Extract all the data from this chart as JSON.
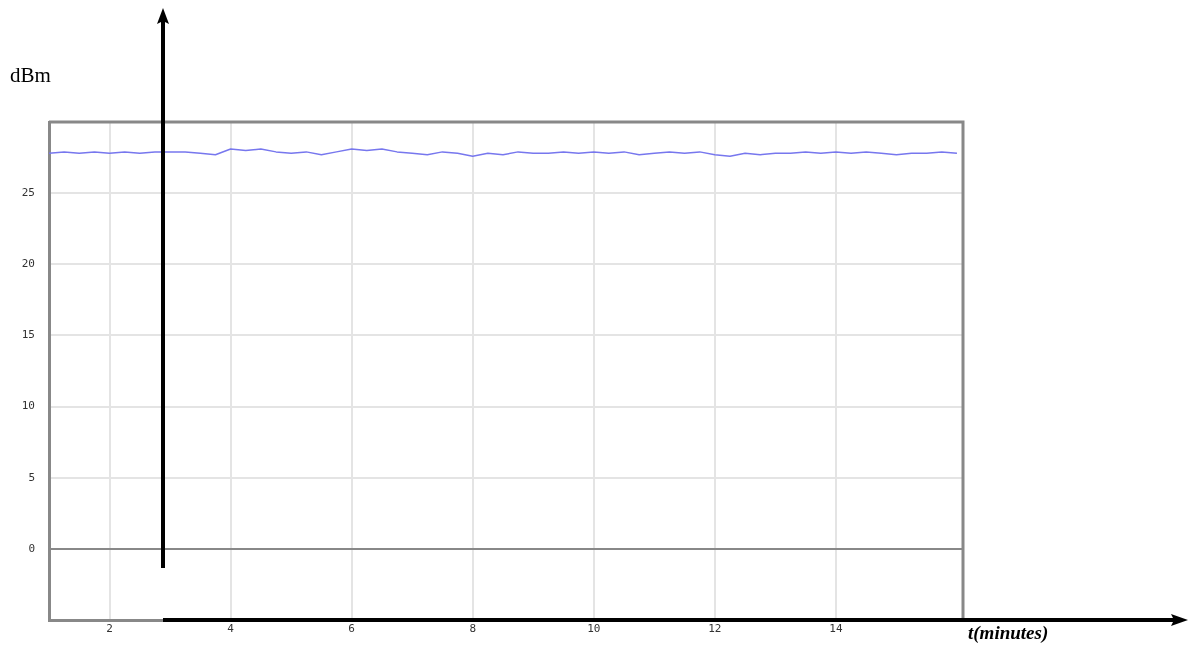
{
  "chart_data": {
    "type": "line",
    "xlabel": "t(minutes)",
    "ylabel": "dBm",
    "x": [
      1,
      1.25,
      1.5,
      1.75,
      2,
      2.25,
      2.5,
      2.75,
      3,
      3.25,
      3.5,
      3.75,
      4,
      4.25,
      4.5,
      4.75,
      5,
      5.25,
      5.5,
      5.75,
      6,
      6.25,
      6.5,
      6.75,
      7,
      7.25,
      7.5,
      7.75,
      8,
      8.25,
      8.5,
      8.75,
      9,
      9.25,
      9.5,
      9.75,
      10,
      10.25,
      10.5,
      10.75,
      11,
      11.25,
      11.5,
      11.75,
      12,
      12.25,
      12.5,
      12.75,
      13,
      13.25,
      13.5,
      13.75,
      14,
      14.25,
      14.5,
      14.75,
      15,
      15.25,
      15.5,
      15.75,
      16
    ],
    "series": [
      {
        "color": "#7777ee",
        "values": [
          27.8,
          27.9,
          27.8,
          27.9,
          27.8,
          27.9,
          27.8,
          27.9,
          27.9,
          27.9,
          27.8,
          27.7,
          28.1,
          28,
          28.1,
          27.9,
          27.8,
          27.9,
          27.7,
          27.9,
          28.1,
          28,
          28.1,
          27.9,
          27.8,
          27.7,
          27.9,
          27.8,
          27.6,
          27.8,
          27.7,
          27.9,
          27.8,
          27.8,
          27.9,
          27.8,
          27.9,
          27.8,
          27.9,
          27.7,
          27.8,
          27.9,
          27.8,
          27.9,
          27.7,
          27.6,
          27.8,
          27.7,
          27.8,
          27.8,
          27.9,
          27.8,
          27.9,
          27.8,
          27.9,
          27.8,
          27.7,
          27.8,
          27.8,
          27.9,
          27.8
        ]
      }
    ],
    "xlim": [
      1,
      16.1
    ],
    "xticks": [
      2,
      4,
      6,
      8,
      10,
      12,
      14
    ],
    "ylim": [
      -5,
      30
    ],
    "yticks": [
      0,
      5,
      10,
      15,
      20,
      25
    ],
    "grid": true,
    "marker": "none",
    "line_style": "solid",
    "legend": false
  }
}
